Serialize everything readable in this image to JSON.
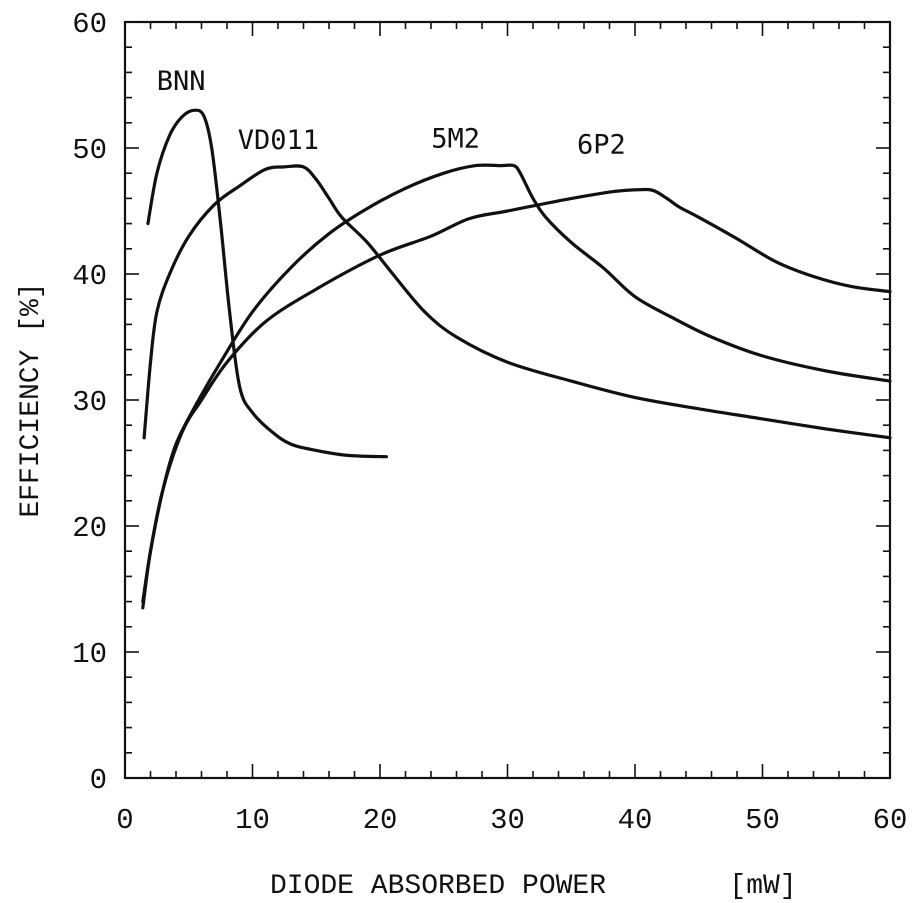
{
  "chart_data": {
    "type": "line",
    "title": "",
    "xlabel": "DIODE ABSORBED POWER",
    "xunit": "[mW]",
    "ylabel": "EFFICIENCY [%]",
    "xlim": [
      0,
      60
    ],
    "ylim": [
      0,
      60
    ],
    "xticks": [
      "0",
      "10",
      "20",
      "30",
      "40",
      "50",
      "60"
    ],
    "yticks": [
      "0",
      "10",
      "20",
      "30",
      "40",
      "50",
      "60"
    ],
    "grid": false,
    "legend": "none (series labelled inline)",
    "series": [
      {
        "name": "BNN",
        "x": [
          1.8,
          2.5,
          3.5,
          4.5,
          5.5,
          6.2,
          6.8,
          7.5,
          8.2,
          9.0,
          10.0,
          11.5,
          13.0,
          15.0,
          17.5,
          20.5
        ],
        "y": [
          44,
          48,
          51,
          52.5,
          53,
          52.5,
          50,
          44,
          37,
          31,
          29,
          27.5,
          26.5,
          26,
          25.6,
          25.5
        ]
      },
      {
        "name": "VD011",
        "x": [
          1.5,
          2.0,
          2.5,
          3.5,
          5.0,
          7.0,
          9.0,
          11.0,
          12.5,
          14.0,
          15.0,
          16.0,
          17.0,
          19.0,
          21.0,
          23.5,
          26.0,
          30.0,
          35.0,
          40.0,
          45.0,
          50.0,
          55.0,
          60.0
        ],
        "y": [
          27,
          33,
          37,
          40,
          43,
          45.5,
          47,
          48.3,
          48.5,
          48.5,
          47.5,
          46,
          44.5,
          42.5,
          40,
          37,
          35,
          33,
          31.5,
          30.2,
          29.3,
          28.5,
          27.7,
          27
        ]
      },
      {
        "name": "5M2",
        "x": [
          1.4,
          2.0,
          3.0,
          4.0,
          5.5,
          7.5,
          10.0,
          13.0,
          16.0,
          19.0,
          22.0,
          25.0,
          27.5,
          29.5,
          30.5,
          31.0,
          32.0,
          33.0,
          35.0,
          37.5,
          40.0,
          43.0,
          46.0,
          50.0,
          55.0,
          60.0
        ],
        "y": [
          14,
          18,
          23,
          26.5,
          29.5,
          33,
          37,
          40.5,
          43.2,
          45.2,
          46.8,
          48,
          48.6,
          48.6,
          48.6,
          48,
          46,
          44.5,
          42.5,
          40.5,
          38.2,
          36.5,
          35,
          33.5,
          32.3,
          31.5
        ]
      },
      {
        "name": "6P2",
        "x": [
          1.4,
          2.0,
          3.0,
          4.5,
          6.0,
          8.0,
          11.0,
          15.0,
          20.0,
          24.0,
          27.0,
          30.0,
          34.0,
          38.0,
          40.5,
          41.5,
          42.5,
          43.5,
          45.0,
          48.0,
          51.0,
          54.0,
          57.0,
          60.0
        ],
        "y": [
          13.5,
          18,
          23,
          27.5,
          30,
          33,
          36.2,
          38.8,
          41.5,
          43,
          44.4,
          45,
          45.8,
          46.5,
          46.7,
          46.6,
          46,
          45.3,
          44.5,
          42.8,
          41,
          39.8,
          39,
          38.6
        ]
      }
    ]
  }
}
